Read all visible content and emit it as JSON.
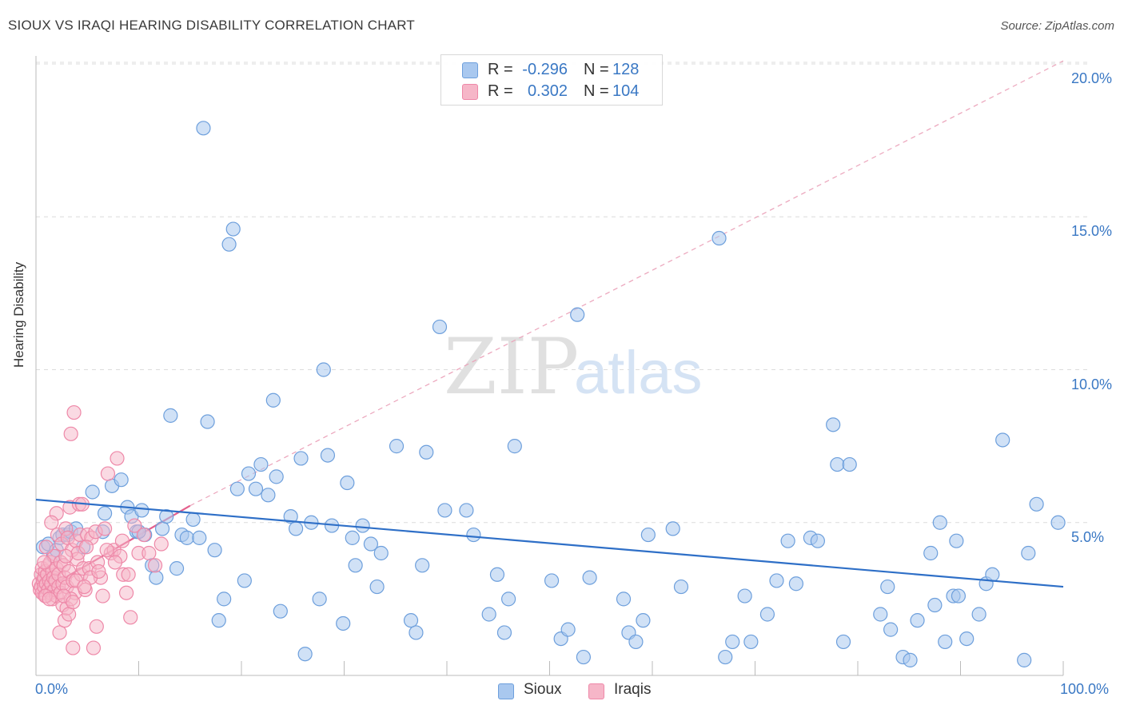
{
  "header": {
    "title": "SIOUX VS IRAQI HEARING DISABILITY CORRELATION CHART",
    "source": "Source: ZipAtlas.com"
  },
  "watermark": {
    "part1": "ZIP",
    "part2": "atlas"
  },
  "stats": {
    "sioux": {
      "r_label": "R =",
      "r_value": "-0.296",
      "n_label": "N =",
      "n_value": "128"
    },
    "iraqis": {
      "r_label": "R =",
      "r_value": "0.302",
      "n_label": "N =",
      "n_value": "104"
    }
  },
  "colors": {
    "sioux_fill": "#a9c8ef",
    "sioux_stroke": "#6d9fdc",
    "sioux_line": "#2e6fc7",
    "iraqis_fill": "#f6b6c8",
    "iraqis_stroke": "#ee88a8",
    "iraqis_line": "#e4608d",
    "tick_label": "#3a78c4",
    "grid": "#dcdcdc"
  },
  "chart_data": {
    "type": "scatter",
    "ylabel": "Hearing Disability",
    "xlim": [
      0,
      100
    ],
    "ylim": [
      0,
      20.5
    ],
    "x_tick_labels": {
      "min": "0.0%",
      "max": "100.0%"
    },
    "y_ticks": [
      {
        "value": 5,
        "label": "5.0%"
      },
      {
        "value": 10,
        "label": "10.0%"
      },
      {
        "value": 15,
        "label": "15.0%"
      },
      {
        "value": 20,
        "label": "20.0%"
      }
    ],
    "grid": "horizontal-dashed",
    "legend_position": "bottom-center",
    "series": [
      {
        "name": "Sioux",
        "trend": {
          "x0": 0,
          "y0": 5.75,
          "x1": 100,
          "y1": 2.9
        },
        "points": [
          [
            0.7,
            4.2
          ],
          [
            1.2,
            4.3
          ],
          [
            1.7,
            3.9
          ],
          [
            2.0,
            4.1
          ],
          [
            2.3,
            4.5
          ],
          [
            2.6,
            4.6
          ],
          [
            3.1,
            4.6
          ],
          [
            3.4,
            4.7
          ],
          [
            3.9,
            4.8
          ],
          [
            4.6,
            4.2
          ],
          [
            5.5,
            6.0
          ],
          [
            6.7,
            5.3
          ],
          [
            7.4,
            6.2
          ],
          [
            8.3,
            6.4
          ],
          [
            8.9,
            5.5
          ],
          [
            9.3,
            5.2
          ],
          [
            9.8,
            4.7
          ],
          [
            10.3,
            5.4
          ],
          [
            10.6,
            4.6
          ],
          [
            11.3,
            3.6
          ],
          [
            11.7,
            3.2
          ],
          [
            12.3,
            4.8
          ],
          [
            12.7,
            5.2
          ],
          [
            13.1,
            8.5
          ],
          [
            13.7,
            3.5
          ],
          [
            14.2,
            4.6
          ],
          [
            14.7,
            4.5
          ],
          [
            15.3,
            5.1
          ],
          [
            15.9,
            4.5
          ],
          [
            16.3,
            17.9
          ],
          [
            16.7,
            8.3
          ],
          [
            17.4,
            4.1
          ],
          [
            17.8,
            1.8
          ],
          [
            18.3,
            2.5
          ],
          [
            18.8,
            14.1
          ],
          [
            19.2,
            14.6
          ],
          [
            19.6,
            6.1
          ],
          [
            20.3,
            3.1
          ],
          [
            20.7,
            6.6
          ],
          [
            21.4,
            6.1
          ],
          [
            21.9,
            6.9
          ],
          [
            22.6,
            5.9
          ],
          [
            23.1,
            9.0
          ],
          [
            23.4,
            6.5
          ],
          [
            23.8,
            2.1
          ],
          [
            24.8,
            5.2
          ],
          [
            25.3,
            4.8
          ],
          [
            25.8,
            7.1
          ],
          [
            26.2,
            0.7
          ],
          [
            26.8,
            5.0
          ],
          [
            27.6,
            2.5
          ],
          [
            28.0,
            10.0
          ],
          [
            28.4,
            7.2
          ],
          [
            28.8,
            4.9
          ],
          [
            29.9,
            1.7
          ],
          [
            30.3,
            6.3
          ],
          [
            30.8,
            4.5
          ],
          [
            31.1,
            3.6
          ],
          [
            31.8,
            4.9
          ],
          [
            32.6,
            4.3
          ],
          [
            33.2,
            2.9
          ],
          [
            33.6,
            4.0
          ],
          [
            35.1,
            7.5
          ],
          [
            36.5,
            1.8
          ],
          [
            37.0,
            1.4
          ],
          [
            37.6,
            3.6
          ],
          [
            38.0,
            7.3
          ],
          [
            39.3,
            11.4
          ],
          [
            39.8,
            5.4
          ],
          [
            41.9,
            5.4
          ],
          [
            42.6,
            4.6
          ],
          [
            44.1,
            2.0
          ],
          [
            44.9,
            3.3
          ],
          [
            45.6,
            1.4
          ],
          [
            46.0,
            2.5
          ],
          [
            46.6,
            7.5
          ],
          [
            50.2,
            3.1
          ],
          [
            51.1,
            1.2
          ],
          [
            51.8,
            1.5
          ],
          [
            52.7,
            11.8
          ],
          [
            53.3,
            0.6
          ],
          [
            53.9,
            3.2
          ],
          [
            57.2,
            2.5
          ],
          [
            57.7,
            1.4
          ],
          [
            58.4,
            1.1
          ],
          [
            59.1,
            1.8
          ],
          [
            59.6,
            4.6
          ],
          [
            62.0,
            4.8
          ],
          [
            62.8,
            2.9
          ],
          [
            66.5,
            14.3
          ],
          [
            67.1,
            0.6
          ],
          [
            67.8,
            1.1
          ],
          [
            69.0,
            2.6
          ],
          [
            69.6,
            1.1
          ],
          [
            71.2,
            2.0
          ],
          [
            72.1,
            3.1
          ],
          [
            73.2,
            4.4
          ],
          [
            74.0,
            3.0
          ],
          [
            75.4,
            4.5
          ],
          [
            76.1,
            4.4
          ],
          [
            77.6,
            8.2
          ],
          [
            78.0,
            6.9
          ],
          [
            78.6,
            1.1
          ],
          [
            79.2,
            6.9
          ],
          [
            82.2,
            2.0
          ],
          [
            82.9,
            2.9
          ],
          [
            83.2,
            1.5
          ],
          [
            84.4,
            0.6
          ],
          [
            85.1,
            0.5
          ],
          [
            85.8,
            1.8
          ],
          [
            87.1,
            4.0
          ],
          [
            87.5,
            2.3
          ],
          [
            88.0,
            5.0
          ],
          [
            88.5,
            1.1
          ],
          [
            89.3,
            2.6
          ],
          [
            89.6,
            4.4
          ],
          [
            89.8,
            2.6
          ],
          [
            90.6,
            1.2
          ],
          [
            91.8,
            2.0
          ],
          [
            92.5,
            3.0
          ],
          [
            93.1,
            3.3
          ],
          [
            94.1,
            7.7
          ],
          [
            96.2,
            0.5
          ],
          [
            96.6,
            4.0
          ],
          [
            97.4,
            5.6
          ],
          [
            99.5,
            5.0
          ],
          [
            10.0,
            4.7
          ],
          [
            6.5,
            4.7
          ]
        ]
      },
      {
        "name": "Iraqis",
        "trend": {
          "x0": 0,
          "y0": 2.65,
          "x1": 15,
          "y1": 5.55
        },
        "projection": {
          "x0": 15,
          "y0": 5.55,
          "x1": 100,
          "y1": 20.1
        },
        "points": [
          [
            0.3,
            3.0
          ],
          [
            0.4,
            2.8
          ],
          [
            0.5,
            3.3
          ],
          [
            0.5,
            2.9
          ],
          [
            0.6,
            3.5
          ],
          [
            0.6,
            2.7
          ],
          [
            0.7,
            3.1
          ],
          [
            0.8,
            3.2
          ],
          [
            0.8,
            2.9
          ],
          [
            0.9,
            3.4
          ],
          [
            1.0,
            3.0
          ],
          [
            1.0,
            2.6
          ],
          [
            1.1,
            3.3
          ],
          [
            1.2,
            3.6
          ],
          [
            1.2,
            2.8
          ],
          [
            1.3,
            3.1
          ],
          [
            1.4,
            3.7
          ],
          [
            1.4,
            2.7
          ],
          [
            1.5,
            3.0
          ],
          [
            1.6,
            3.4
          ],
          [
            1.6,
            2.5
          ],
          [
            1.7,
            3.2
          ],
          [
            1.8,
            3.9
          ],
          [
            1.8,
            2.8
          ],
          [
            1.9,
            3.1
          ],
          [
            2.0,
            3.5
          ],
          [
            2.0,
            2.6
          ],
          [
            2.1,
            4.6
          ],
          [
            2.2,
            3.3
          ],
          [
            2.2,
            2.9
          ],
          [
            2.3,
            1.4
          ],
          [
            2.4,
            3.7
          ],
          [
            2.4,
            2.7
          ],
          [
            2.5,
            4.3
          ],
          [
            2.6,
            3.0
          ],
          [
            2.6,
            2.3
          ],
          [
            2.7,
            3.6
          ],
          [
            2.8,
            1.8
          ],
          [
            2.8,
            3.2
          ],
          [
            2.9,
            4.8
          ],
          [
            3.0,
            2.9
          ],
          [
            3.0,
            2.2
          ],
          [
            3.1,
            4.5
          ],
          [
            3.2,
            3.4
          ],
          [
            3.2,
            2.0
          ],
          [
            3.3,
            5.5
          ],
          [
            3.4,
            7.9
          ],
          [
            3.5,
            4.1
          ],
          [
            3.6,
            3.1
          ],
          [
            3.6,
            0.9
          ],
          [
            3.7,
            8.6
          ],
          [
            3.8,
            2.7
          ],
          [
            3.9,
            4.4
          ],
          [
            4.0,
            3.8
          ],
          [
            4.1,
            4.0
          ],
          [
            4.2,
            5.6
          ],
          [
            4.3,
            4.6
          ],
          [
            4.4,
            3.3
          ],
          [
            4.6,
            3.5
          ],
          [
            4.8,
            2.8
          ],
          [
            5.0,
            4.6
          ],
          [
            5.2,
            3.5
          ],
          [
            5.4,
            4.5
          ],
          [
            5.6,
            0.9
          ],
          [
            5.8,
            4.7
          ],
          [
            6.0,
            3.7
          ],
          [
            6.3,
            3.2
          ],
          [
            6.5,
            2.6
          ],
          [
            6.7,
            4.8
          ],
          [
            7.0,
            6.6
          ],
          [
            7.3,
            4.0
          ],
          [
            7.6,
            4.1
          ],
          [
            7.9,
            7.1
          ],
          [
            8.2,
            3.9
          ],
          [
            8.5,
            3.3
          ],
          [
            8.8,
            2.7
          ],
          [
            9.2,
            1.9
          ],
          [
            9.6,
            4.9
          ],
          [
            10.0,
            4.0
          ],
          [
            10.5,
            4.6
          ],
          [
            11.0,
            4.0
          ],
          [
            11.6,
            3.6
          ],
          [
            12.2,
            4.3
          ],
          [
            4.5,
            5.6
          ],
          [
            2.0,
            5.3
          ],
          [
            1.5,
            5.0
          ],
          [
            1.0,
            4.2
          ],
          [
            0.8,
            3.7
          ],
          [
            2.9,
            3.9
          ],
          [
            3.4,
            2.5
          ],
          [
            3.9,
            3.1
          ],
          [
            4.9,
            4.2
          ],
          [
            5.3,
            3.2
          ],
          [
            6.1,
            3.4
          ],
          [
            6.9,
            4.1
          ],
          [
            7.7,
            3.7
          ],
          [
            8.4,
            4.4
          ],
          [
            9.0,
            3.3
          ],
          [
            0.9,
            2.6
          ],
          [
            1.3,
            2.5
          ],
          [
            2.7,
            2.6
          ],
          [
            3.6,
            2.4
          ],
          [
            4.7,
            2.9
          ],
          [
            5.9,
            1.6
          ]
        ]
      }
    ]
  },
  "legend": {
    "sioux": "Sioux",
    "iraqis": "Iraqis"
  }
}
